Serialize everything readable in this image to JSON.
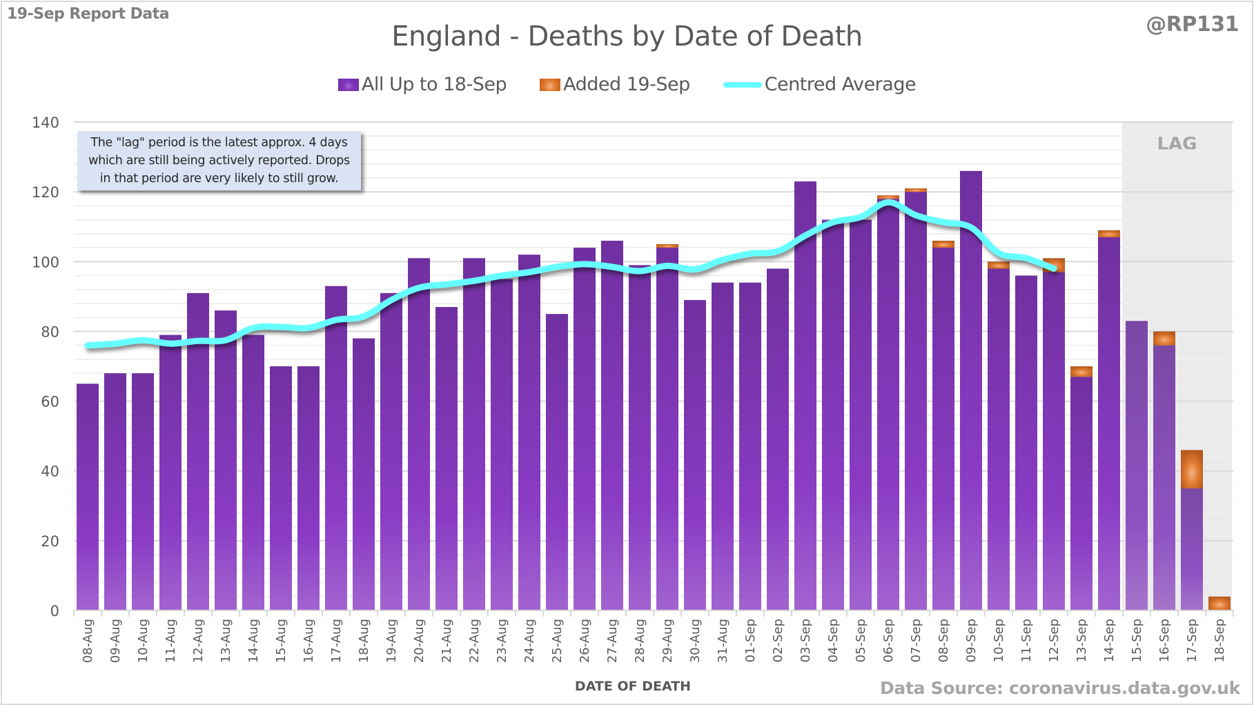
{
  "header": {
    "report_label": "19-Sep Report Data",
    "handle": "@RP131"
  },
  "annotation": {
    "lines": [
      "The \"lag\" period is the latest approx. 4 days",
      "which are still being actively reported.  Drops",
      "in that period are very likely to still grow."
    ]
  },
  "footer": {
    "source": "Data Source: coronavirus.data.gov.uk"
  },
  "colors": {
    "all_up_to": "#7030a0",
    "added": "#e07a30",
    "average": "#66ffff",
    "lag_shade": "#ebebeb"
  },
  "chart_data": {
    "type": "bar",
    "stacked": true,
    "title": "England - Deaths by Date of Death",
    "xlabel": "DATE OF DEATH",
    "ylabel": "",
    "ylim": [
      0,
      140
    ],
    "yticks": [
      0,
      20,
      40,
      60,
      80,
      100,
      120,
      140
    ],
    "grid": true,
    "legend_position": "top",
    "lag_region": {
      "label": "LAG",
      "start": "15-Sep",
      "end": "18-Sep"
    },
    "categories": [
      "08-Aug",
      "09-Aug",
      "10-Aug",
      "11-Aug",
      "12-Aug",
      "13-Aug",
      "14-Aug",
      "15-Aug",
      "16-Aug",
      "17-Aug",
      "18-Aug",
      "19-Aug",
      "20-Aug",
      "21-Aug",
      "22-Aug",
      "23-Aug",
      "24-Aug",
      "25-Aug",
      "26-Aug",
      "27-Aug",
      "28-Aug",
      "29-Aug",
      "30-Aug",
      "31-Aug",
      "01-Sep",
      "02-Sep",
      "03-Sep",
      "04-Sep",
      "05-Sep",
      "06-Sep",
      "07-Sep",
      "08-Sep",
      "09-Sep",
      "10-Sep",
      "11-Sep",
      "12-Sep",
      "13-Sep",
      "14-Sep",
      "15-Sep",
      "16-Sep",
      "17-Sep",
      "18-Sep"
    ],
    "series": [
      {
        "name": "All Up to 18-Sep",
        "type": "bar",
        "values": [
          65,
          68,
          68,
          79,
          91,
          86,
          79,
          70,
          70,
          93,
          78,
          91,
          101,
          87,
          101,
          95,
          102,
          85,
          104,
          106,
          99,
          104,
          89,
          94,
          94,
          98,
          123,
          112,
          112,
          118,
          120,
          104,
          126,
          98,
          96,
          97,
          67,
          107,
          83,
          76,
          35,
          0
        ]
      },
      {
        "name": "Added 19-Sep",
        "type": "bar",
        "values": [
          0,
          0,
          0,
          0,
          0,
          0,
          0,
          0,
          0,
          0,
          0,
          0,
          0,
          0,
          0,
          0,
          0,
          0,
          0,
          0,
          0,
          1,
          0,
          0,
          0,
          0,
          0,
          0,
          0,
          1,
          1,
          2,
          0,
          2,
          0,
          4,
          3,
          2,
          0,
          4,
          11,
          4
        ]
      },
      {
        "name": "Centred Average",
        "type": "line",
        "values": [
          76,
          76.5,
          77.5,
          76.5,
          77.3,
          77.5,
          81,
          81.3,
          81,
          83.3,
          84.3,
          89,
          92.5,
          93.5,
          94.5,
          96,
          97,
          98.5,
          99.3,
          98.5,
          97.3,
          98.8,
          97.8,
          100.5,
          102.3,
          103,
          107.5,
          111.3,
          112.8,
          117,
          113.3,
          111.3,
          109.8,
          102.5,
          101,
          98,
          null,
          null,
          null,
          null,
          null,
          null
        ]
      }
    ]
  }
}
